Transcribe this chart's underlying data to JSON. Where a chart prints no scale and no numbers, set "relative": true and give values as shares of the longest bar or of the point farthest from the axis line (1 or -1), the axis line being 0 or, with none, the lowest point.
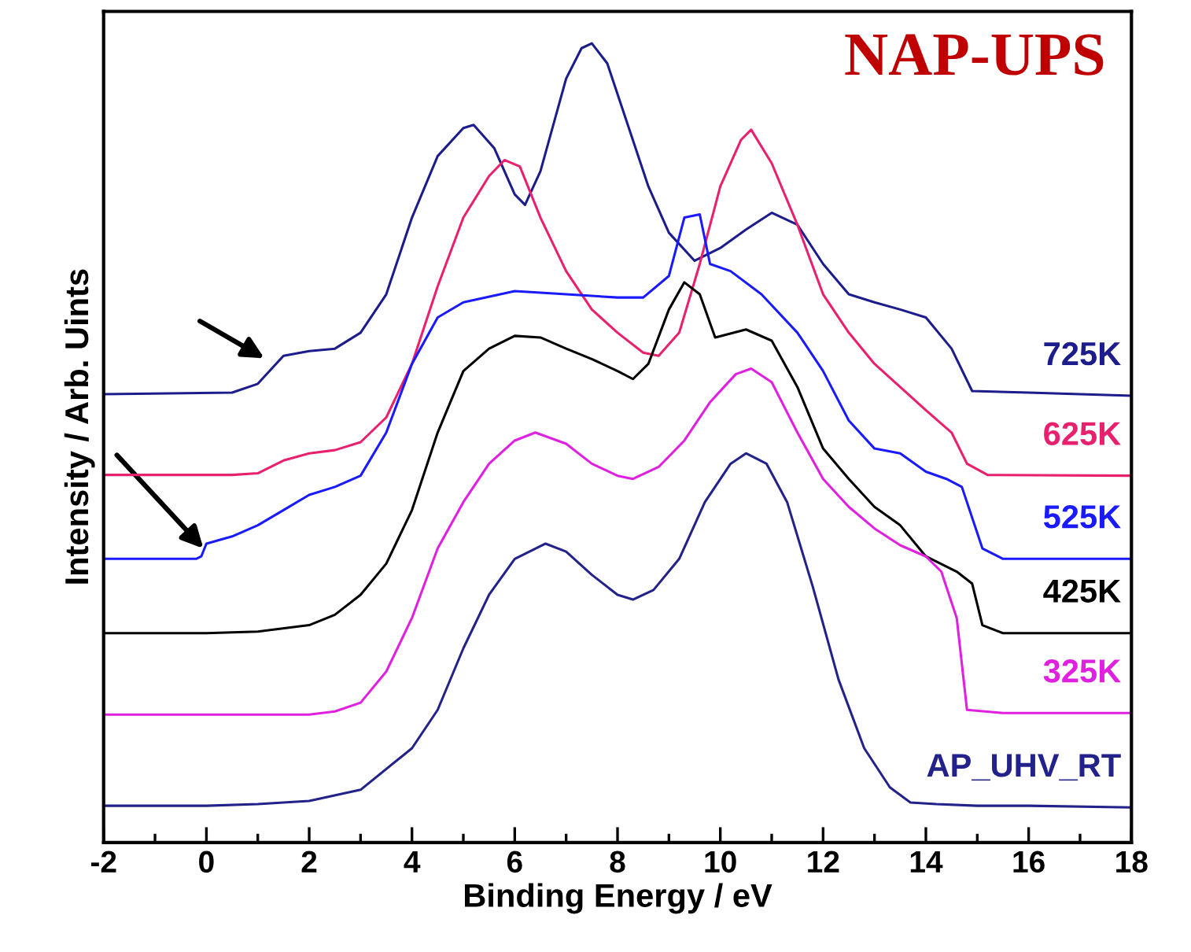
{
  "chart_data": {
    "type": "line",
    "relative": true,
    "title": "NAP-UPS",
    "xlabel": "Binding Energy / eV",
    "ylabel": "Intensity / Arb. Uints",
    "xlim": [
      -2,
      18
    ],
    "xticks": [
      -2,
      {
        "value": -1,
        "label": null
      },
      0,
      {
        "value": 1,
        "label": null
      },
      2,
      {
        "value": 3,
        "label": null
      },
      4,
      {
        "value": 5,
        "label": null
      },
      6,
      {
        "value": 7,
        "label": null
      },
      8,
      {
        "value": 9,
        "label": null
      },
      10,
      {
        "value": 11,
        "label": null
      },
      12,
      {
        "value": 13,
        "label": null
      },
      14,
      {
        "value": 15,
        "label": null
      },
      16,
      {
        "value": 17,
        "label": null
      },
      18
    ],
    "grid": false,
    "legend": false,
    "marker": "none",
    "line_style": "solid",
    "series": [
      {
        "name": "725K",
        "color": "#1c1c8c",
        "x": [
          -2,
          0.5,
          1,
          1.5,
          2,
          2.5,
          3,
          3.5,
          4,
          4.5,
          5,
          5.2,
          5.6,
          6,
          6.2,
          6.5,
          7,
          7.3,
          7.5,
          7.8,
          8.2,
          8.6,
          9,
          9.5,
          10,
          10.5,
          11,
          11.5,
          12,
          12.5,
          13,
          13.5,
          14,
          14.5,
          14.9,
          16,
          18
        ],
        "values": [
          0.561,
          0.563,
          0.574,
          0.609,
          0.615,
          0.618,
          0.638,
          0.686,
          0.782,
          0.859,
          0.894,
          0.898,
          0.869,
          0.811,
          0.798,
          0.84,
          0.956,
          0.994,
          1,
          0.975,
          0.898,
          0.821,
          0.763,
          0.728,
          0.744,
          0.767,
          0.788,
          0.773,
          0.724,
          0.686,
          0.676,
          0.667,
          0.657,
          0.618,
          0.565,
          0.563,
          0.559
        ]
      },
      {
        "name": "625K",
        "color": "#e8206e",
        "x": [
          -2,
          0.5,
          1,
          1.5,
          2,
          2.5,
          3,
          3.5,
          4,
          4.5,
          5,
          5.5,
          5.8,
          6.1,
          6.5,
          7,
          7.5,
          8,
          8.5,
          8.8,
          9.2,
          9.6,
          10,
          10.4,
          10.6,
          11,
          11.5,
          12,
          12.5,
          13,
          13.5,
          14,
          14.5,
          14.8,
          15.2,
          18
        ],
        "values": [
          0.46,
          0.46,
          0.462,
          0.478,
          0.487,
          0.491,
          0.501,
          0.532,
          0.599,
          0.696,
          0.782,
          0.834,
          0.854,
          0.846,
          0.782,
          0.715,
          0.667,
          0.638,
          0.613,
          0.609,
          0.638,
          0.724,
          0.821,
          0.879,
          0.892,
          0.85,
          0.773,
          0.686,
          0.638,
          0.599,
          0.57,
          0.541,
          0.513,
          0.474,
          0.46,
          0.459
        ]
      },
      {
        "name": "525K",
        "color": "#1a1aff",
        "x": [
          -2,
          -0.2,
          -0.1,
          0,
          0.5,
          1,
          1.5,
          2,
          2.5,
          3,
          3.5,
          4,
          4.5,
          5,
          6,
          7,
          8,
          8.5,
          9,
          9.3,
          9.6,
          9.8,
          10.2,
          10.8,
          11.5,
          12,
          12.5,
          13,
          13.5,
          14,
          14.4,
          14.7,
          15.1,
          15.5,
          18
        ],
        "values": [
          0.355,
          0.355,
          0.358,
          0.374,
          0.383,
          0.397,
          0.416,
          0.435,
          0.445,
          0.459,
          0.513,
          0.599,
          0.657,
          0.676,
          0.69,
          0.686,
          0.682,
          0.682,
          0.709,
          0.782,
          0.786,
          0.724,
          0.715,
          0.686,
          0.638,
          0.59,
          0.528,
          0.493,
          0.487,
          0.464,
          0.455,
          0.445,
          0.368,
          0.355,
          0.355
        ]
      },
      {
        "name": "425K",
        "color": "#000000",
        "x": [
          -2,
          0,
          1,
          2,
          2.5,
          3,
          3.5,
          4,
          4.5,
          5,
          5.5,
          6,
          6.5,
          7,
          7.5,
          8,
          8.3,
          8.6,
          9,
          9.3,
          9.6,
          9.9,
          10.5,
          11,
          11.5,
          12,
          12.5,
          13,
          13.5,
          14,
          14.6,
          14.9,
          15.1,
          15.5,
          18
        ],
        "values": [
          0.262,
          0.262,
          0.264,
          0.272,
          0.285,
          0.31,
          0.349,
          0.416,
          0.513,
          0.59,
          0.618,
          0.634,
          0.632,
          0.618,
          0.605,
          0.59,
          0.58,
          0.599,
          0.667,
          0.701,
          0.686,
          0.632,
          0.642,
          0.628,
          0.57,
          0.493,
          0.455,
          0.42,
          0.397,
          0.358,
          0.339,
          0.324,
          0.272,
          0.262,
          0.262
        ]
      },
      {
        "name": "325K",
        "color": "#e020e0",
        "x": [
          -2,
          2,
          2.5,
          3,
          3.5,
          4,
          4.5,
          5,
          5.5,
          6,
          6.4,
          7,
          7.5,
          8,
          8.3,
          8.8,
          9.3,
          9.8,
          10.3,
          10.6,
          11,
          11.5,
          12,
          12.5,
          13,
          13.5,
          14,
          14.3,
          14.6,
          14.8,
          15.5,
          18
        ],
        "values": [
          0.16,
          0.16,
          0.164,
          0.175,
          0.214,
          0.281,
          0.368,
          0.426,
          0.474,
          0.503,
          0.513,
          0.499,
          0.474,
          0.459,
          0.455,
          0.47,
          0.503,
          0.551,
          0.586,
          0.593,
          0.576,
          0.513,
          0.455,
          0.42,
          0.393,
          0.372,
          0.358,
          0.339,
          0.281,
          0.166,
          0.162,
          0.162
        ]
      },
      {
        "name": "AP_UHV_RT",
        "color": "#22228a",
        "x": [
          -2,
          0,
          1,
          2,
          3,
          4,
          4.5,
          5,
          5.5,
          6,
          6.6,
          7,
          7.5,
          8,
          8.3,
          8.7,
          9.2,
          9.7,
          10.2,
          10.5,
          10.9,
          11.3,
          11.8,
          12.3,
          12.8,
          13.3,
          13.7,
          14.2,
          15,
          16,
          18
        ],
        "values": [
          0.046,
          0.046,
          0.048,
          0.052,
          0.066,
          0.118,
          0.166,
          0.243,
          0.31,
          0.355,
          0.374,
          0.364,
          0.335,
          0.31,
          0.304,
          0.316,
          0.355,
          0.426,
          0.474,
          0.487,
          0.474,
          0.426,
          0.32,
          0.204,
          0.118,
          0.069,
          0.05,
          0.048,
          0.046,
          0.046,
          0.044
        ]
      }
    ]
  }
}
